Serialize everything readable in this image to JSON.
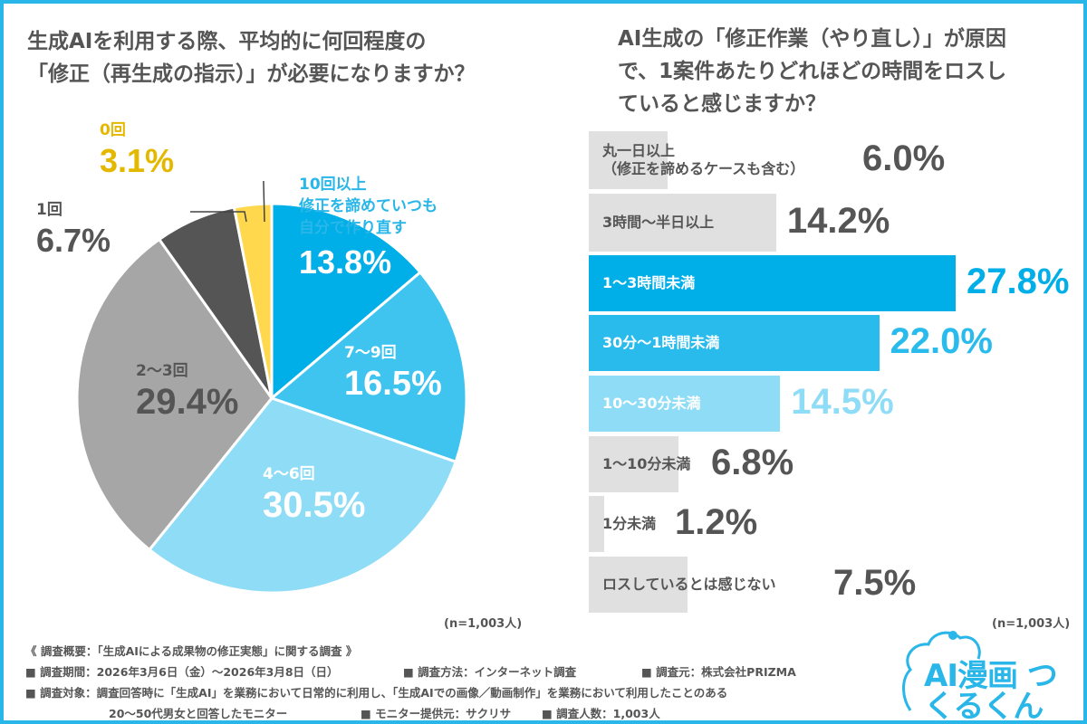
{
  "chart_data": [
    {
      "type": "pie",
      "title": "生成AIを利用する際、平均的に何回程度の「修正（再生成の指示）」が必要になりますか？",
      "categories": [
        "10回以上 修正を諦めていつも自分で作り直す",
        "7〜9回",
        "4〜6回",
        "2〜3回",
        "1回",
        "0回"
      ],
      "labels": [
        [
          "10回以上",
          "修正を諦めていつも",
          "自分で作り直す"
        ],
        [
          "7〜9回"
        ],
        [
          "4〜6回"
        ],
        [
          "2〜3回"
        ],
        [
          "1回"
        ],
        [
          "0回"
        ]
      ],
      "values": [
        13.8,
        16.5,
        30.5,
        29.4,
        6.7,
        3.1
      ],
      "value_labels": [
        "13.8%",
        "16.5%",
        "30.5%",
        "29.4%",
        "6.7%",
        "3.1%"
      ],
      "colors": [
        "#00aee8",
        "#3ec4ef",
        "#8fdcf6",
        "#a6a6a6",
        "#555555",
        "#ffd84d"
      ],
      "note": "(n=1,003人)"
    },
    {
      "type": "bar",
      "orientation": "horizontal",
      "title": "AI生成の「修正作業（やり直し）」が原因で、1案件あたりどれほどの時間をロスしていると感じますか？",
      "categories": [
        "丸一日以上（修正を諦めるケースも含む）",
        "3時間〜半日以上",
        "1〜3時間未満",
        "30分〜1時間未満",
        "10〜30分未満",
        "1〜10分未満",
        "1分未満",
        "ロスしているとは感じない"
      ],
      "labels": [
        [
          "丸一日以上",
          "（修正を諦めるケースも含む）"
        ],
        [
          "3時間〜半日以上"
        ],
        [
          "1〜3時間未満"
        ],
        [
          "30分〜1時間未満"
        ],
        [
          "10〜30分未満"
        ],
        [
          "1〜10分未満"
        ],
        [
          "1分未満"
        ],
        [
          "ロスしているとは感じない"
        ]
      ],
      "values": [
        6.0,
        14.2,
        27.8,
        22.0,
        14.5,
        6.8,
        1.2,
        7.5
      ],
      "value_labels": [
        "6.0%",
        "14.2%",
        "27.8%",
        "22.0%",
        "14.5%",
        "6.8%",
        "1.2%",
        "7.5%"
      ],
      "colors": [
        "#e0e0e0",
        "#e0e0e0",
        "#00aee8",
        "#29bbec",
        "#8fdcf6",
        "#e0e0e0",
        "#e0e0e0",
        "#e0e0e0"
      ],
      "value_colors": [
        "#555555",
        "#555555",
        "#00aee8",
        "#29bbec",
        "#8fdcf6",
        "#555555",
        "#555555",
        "#555555"
      ],
      "label_colors": [
        "#555555",
        "#555555",
        "#ffffff",
        "#ffffff",
        "#ffffff",
        "#555555",
        "#555555",
        "#555555"
      ],
      "note": "(n=1,003人)"
    }
  ],
  "footer": {
    "heading": "《 調査概要：「生成AIによる成果物の修正実態」に関する調査 》",
    "line1a": "■ 調査期間：2026年3月6日（金）〜2026年3月8日（日）",
    "line1b": "■ 調査方法：インターネット調査",
    "line1c": "■ 調査元：株式会社PRIZMA",
    "line2": "■ 調査対象：調査回答時に「生成AI」を業務において日常的に利用し、「生成AIでの画像／動画制作」を業務において利用したことのある",
    "line3a": "20〜50代男女と回答したモニター",
    "line3b": "■ モニター提供元：サクリサ",
    "line3c": "■ 調査人数：1,003人"
  },
  "logo": {
    "text": "AI漫画 つくるくん",
    "color": "#29b6e8"
  }
}
